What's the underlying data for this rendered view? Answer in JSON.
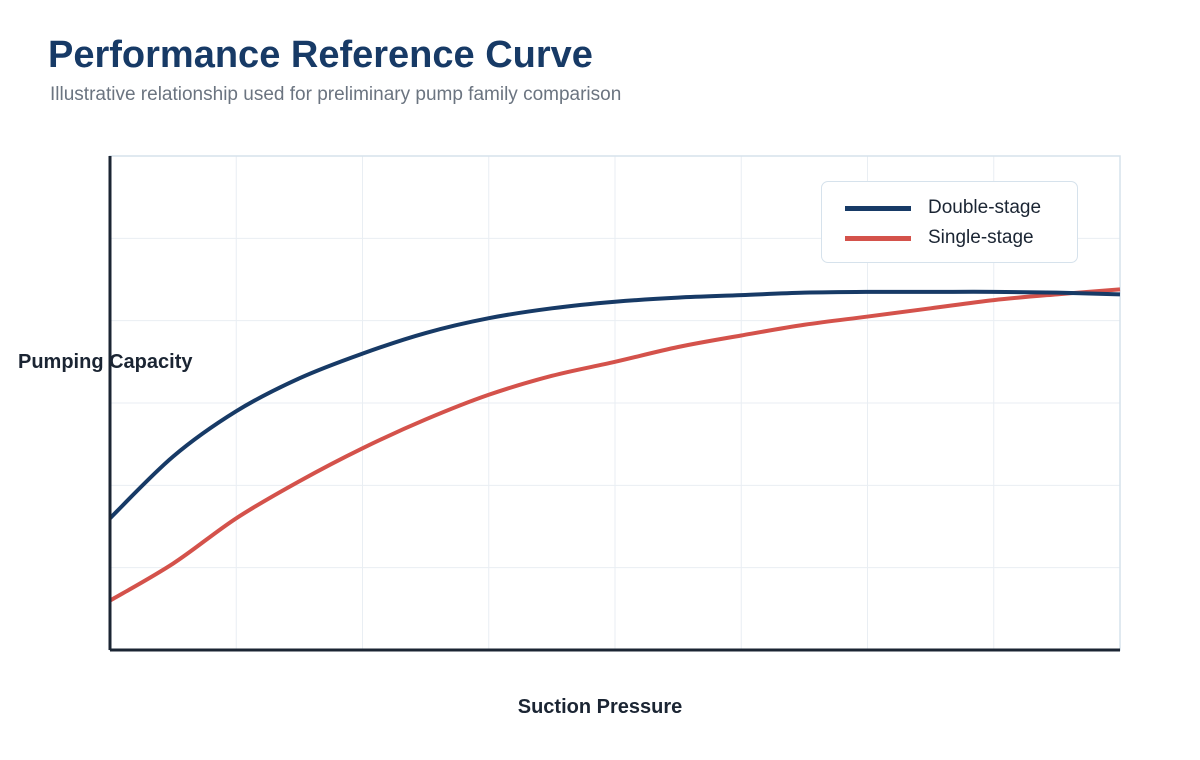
{
  "header": {
    "title": "Performance Reference Curve",
    "subtitle": "Illustrative relationship used for preliminary pump family comparison"
  },
  "chart_data": {
    "type": "line",
    "title": "Performance Reference Curve",
    "subtitle": "Illustrative relationship used for preliminary pump family comparison",
    "xlabel": "Suction Pressure",
    "ylabel": "Pumping Capacity",
    "xlim": [
      0,
      8
    ],
    "ylim": [
      0,
      6
    ],
    "grid": true,
    "tick_labels": false,
    "legend_position": "top-right",
    "x": [
      0,
      0.5,
      1,
      1.5,
      2,
      2.5,
      3,
      3.5,
      4,
      4.5,
      5,
      5.5,
      6,
      6.5,
      7,
      7.5,
      8
    ],
    "series": [
      {
        "name": "Double-stage",
        "color": "#173a66",
        "values": [
          1.6,
          2.35,
          2.9,
          3.3,
          3.6,
          3.85,
          4.03,
          4.15,
          4.23,
          4.28,
          4.31,
          4.34,
          4.35,
          4.35,
          4.35,
          4.34,
          4.32
        ]
      },
      {
        "name": "Single-stage",
        "color": "#d4524b",
        "values": [
          0.6,
          1.05,
          1.6,
          2.05,
          2.45,
          2.8,
          3.1,
          3.33,
          3.5,
          3.68,
          3.82,
          3.95,
          4.05,
          4.15,
          4.25,
          4.32,
          4.38
        ]
      }
    ]
  }
}
